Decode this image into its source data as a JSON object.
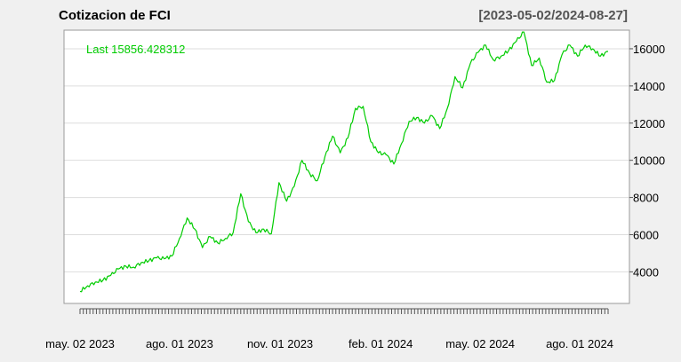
{
  "chart_data": {
    "type": "line",
    "title": "Cotizacion de FCI",
    "date_range_label": "[2023-05-02/2024-08-27]",
    "last_label": "Last 15856.428312",
    "y_ticks": [
      4000,
      6000,
      8000,
      10000,
      12000,
      14000,
      16000
    ],
    "y_tick_labels": [
      "4000",
      "6000",
      "8000",
      "10000",
      "12000",
      "14000",
      "16000"
    ],
    "ylim": [
      2300,
      17000
    ],
    "xlim": [
      "2023-05-02",
      "2024-08-27"
    ],
    "x_ticks": [
      "2023-05-02",
      "2023-08-01",
      "2023-11-01",
      "2024-02-01",
      "2024-05-02",
      "2024-08-01"
    ],
    "x_tick_labels": [
      "may. 02 2023",
      "ago. 01 2023",
      "nov. 01 2023",
      "feb. 01 2024",
      "may. 02 2024",
      "ago. 01 2024"
    ],
    "grid": true,
    "series": [
      {
        "color": "#00cc00",
        "x": [
          "2023-05-02",
          "2023-05-09",
          "2023-05-16",
          "2023-05-23",
          "2023-05-30",
          "2023-06-06",
          "2023-06-13",
          "2023-06-20",
          "2023-06-27",
          "2023-07-04",
          "2023-07-11",
          "2023-07-18",
          "2023-07-25",
          "2023-08-01",
          "2023-08-08",
          "2023-08-15",
          "2023-08-22",
          "2023-08-29",
          "2023-09-05",
          "2023-09-12",
          "2023-09-19",
          "2023-09-26",
          "2023-10-03",
          "2023-10-10",
          "2023-10-17",
          "2023-10-24",
          "2023-10-31",
          "2023-11-07",
          "2023-11-14",
          "2023-11-21",
          "2023-11-28",
          "2023-12-05",
          "2023-12-12",
          "2023-12-19",
          "2023-12-26",
          "2024-01-02",
          "2024-01-09",
          "2024-01-16",
          "2024-01-23",
          "2024-01-30",
          "2024-02-06",
          "2024-02-13",
          "2024-02-20",
          "2024-02-27",
          "2024-03-05",
          "2024-03-12",
          "2024-03-19",
          "2024-03-26",
          "2024-04-02",
          "2024-04-09",
          "2024-04-16",
          "2024-04-23",
          "2024-04-30",
          "2024-05-07",
          "2024-05-14",
          "2024-05-21",
          "2024-05-28",
          "2024-06-04",
          "2024-06-11",
          "2024-06-18",
          "2024-06-25",
          "2024-07-02",
          "2024-07-09",
          "2024-07-16",
          "2024-07-23",
          "2024-07-30",
          "2024-08-06",
          "2024-08-13",
          "2024-08-20",
          "2024-08-27"
        ],
        "values": [
          2950,
          3250,
          3450,
          3550,
          3800,
          4150,
          4300,
          4250,
          4500,
          4600,
          4750,
          4700,
          4850,
          5800,
          6900,
          6300,
          5300,
          5900,
          5550,
          5800,
          6100,
          8200,
          6700,
          6100,
          6300,
          6050,
          8800,
          7800,
          8600,
          10000,
          9300,
          8900,
          10200,
          11300,
          10400,
          11200,
          12800,
          12900,
          11000,
          10400,
          10300,
          9800,
          10900,
          12100,
          12300,
          12000,
          12400,
          11700,
          12800,
          14500,
          13900,
          15200,
          15800,
          16200,
          15400,
          15600,
          15900,
          16400,
          16900,
          15100,
          15500,
          14200,
          14300,
          15700,
          16200,
          15600,
          16200,
          16000,
          15600,
          15856
        ]
      }
    ]
  }
}
